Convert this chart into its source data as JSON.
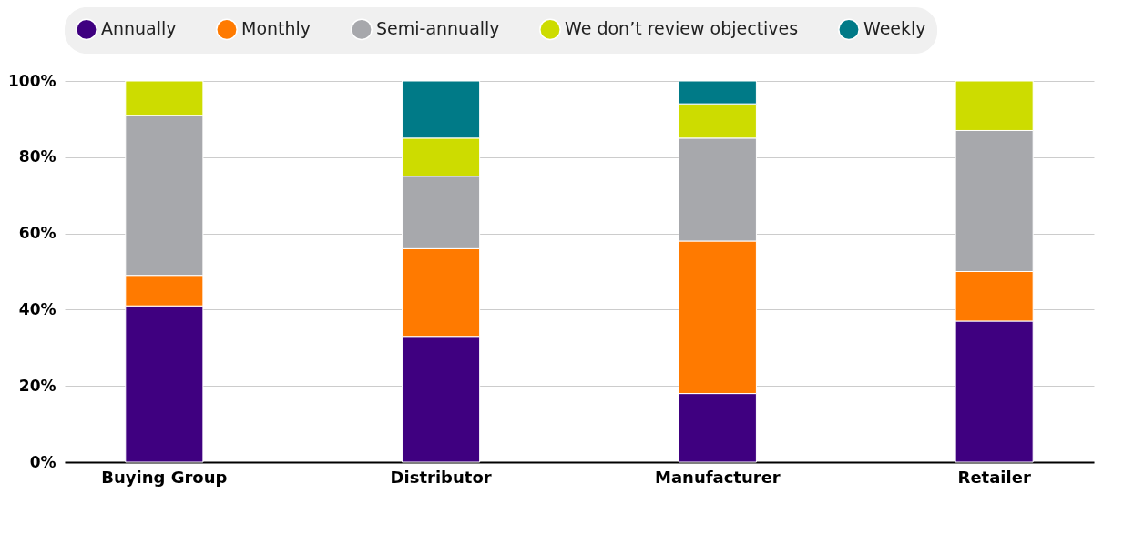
{
  "chart_data": {
    "type": "bar",
    "stacked": true,
    "categories": [
      "Buying Group",
      "Distributor",
      "Manufacturer",
      "Retailer"
    ],
    "series": [
      {
        "name": "Annually",
        "color": "#3f0080",
        "values": [
          41,
          33,
          18,
          37
        ]
      },
      {
        "name": "Monthly",
        "color": "#ff7a00",
        "values": [
          8,
          23,
          40,
          13
        ]
      },
      {
        "name": "Semi-annually",
        "color": "#a7a8ac",
        "values": [
          42,
          19,
          27,
          37
        ]
      },
      {
        "name": "We don’t review objectives",
        "color": "#cddc00",
        "values": [
          9,
          10,
          9,
          13
        ]
      },
      {
        "name": "Weekly",
        "color": "#007a87",
        "values": [
          null,
          15,
          6,
          null
        ]
      }
    ],
    "ylim": [
      0,
      100
    ],
    "yticks": [
      {
        "value": 0,
        "label": "0%"
      },
      {
        "value": 20,
        "label": "20%"
      },
      {
        "value": 40,
        "label": "40%"
      },
      {
        "value": 60,
        "label": "60%"
      },
      {
        "value": 80,
        "label": "80%"
      },
      {
        "value": 100,
        "label": "100%"
      }
    ],
    "grid": "y",
    "legend": "top"
  }
}
